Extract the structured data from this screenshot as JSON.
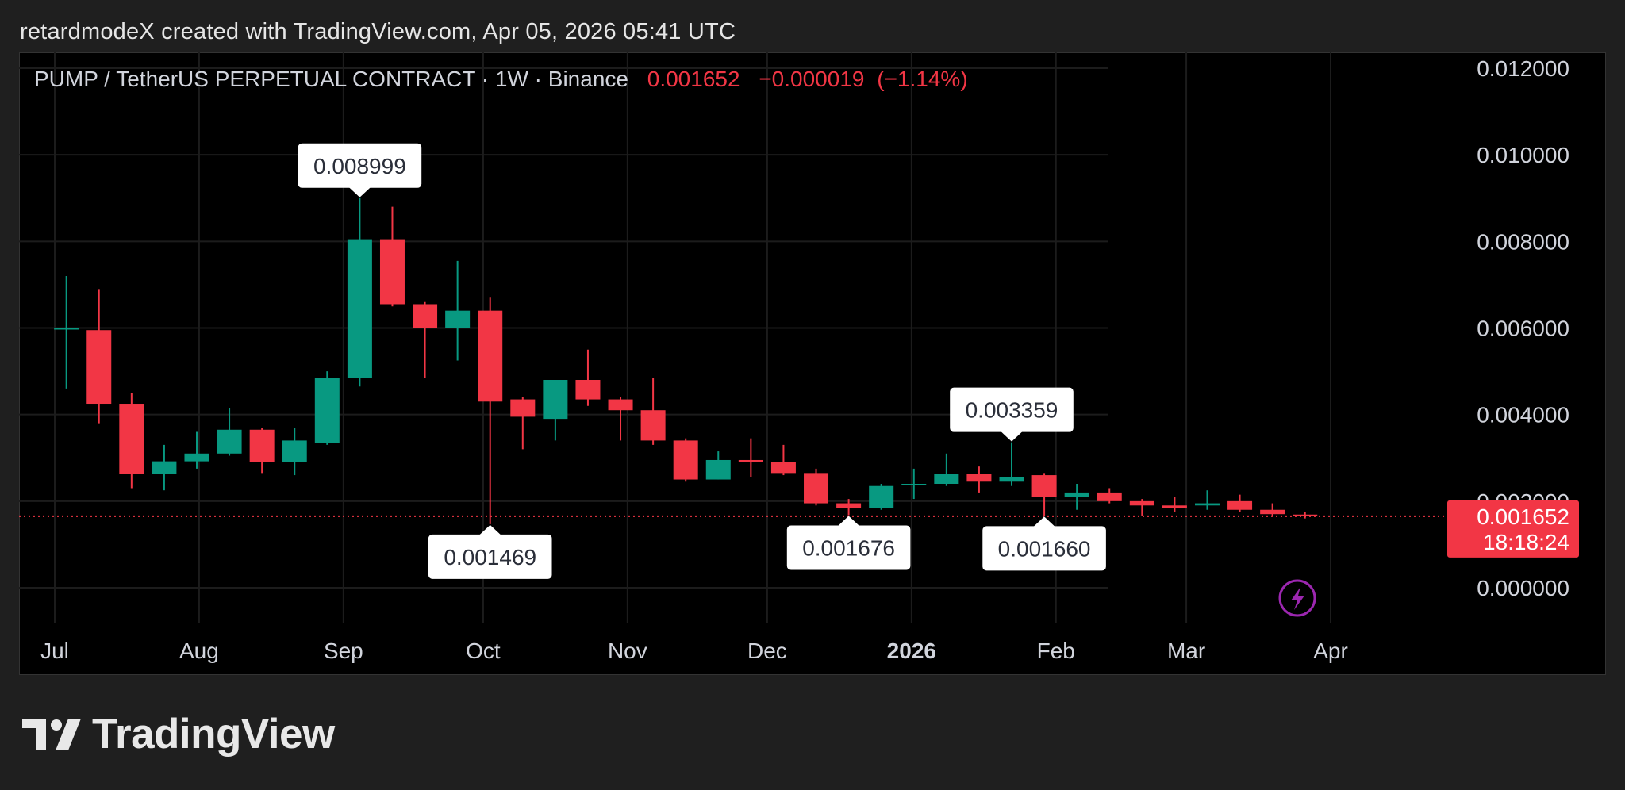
{
  "header": {
    "attribution": "retardmodeX created with TradingView.com, Apr 05, 2026 05:41 UTC"
  },
  "branding": {
    "logo_text": "TradingView",
    "logo_icon": "tradingview-logo-icon"
  },
  "colors": {
    "up": "#089981",
    "down": "#f23645",
    "grid": "#1c1c1c",
    "axis_text": "#d1d4dc",
    "background": "#000000",
    "frame": "#1f1f1f",
    "flash_icon": "#9c27b0"
  },
  "chart_data": {
    "type": "candlestick",
    "symbol": "PUMP / TetherUS PERPETUAL CONTRACT",
    "interval": "1W",
    "exchange": "Binance",
    "last_price": "0.001652",
    "change": "−0.000019",
    "change_pct": "(−1.14%)",
    "countdown": "18:18:24",
    "y_ticks": [
      "0.012000",
      "0.010000",
      "0.008000",
      "0.006000",
      "0.004000",
      "0.002000",
      "0.000000"
    ],
    "ylim": [
      0,
      0.012
    ],
    "x_labels": [
      {
        "label": "Jul",
        "date": "2025-07-01",
        "bold": false
      },
      {
        "label": "Aug",
        "date": "2025-08-01",
        "bold": false
      },
      {
        "label": "Sep",
        "date": "2025-09-01",
        "bold": false
      },
      {
        "label": "Oct",
        "date": "2025-10-01",
        "bold": false
      },
      {
        "label": "Nov",
        "date": "2025-11-01",
        "bold": false
      },
      {
        "label": "Dec",
        "date": "2025-12-01",
        "bold": false
      },
      {
        "label": "2026",
        "date": "2026-01-01",
        "bold": true
      },
      {
        "label": "Feb",
        "date": "2026-02-01",
        "bold": false
      },
      {
        "label": "Mar",
        "date": "2026-03-01",
        "bold": false
      },
      {
        "label": "Apr",
        "date": "2026-04-01",
        "bold": false
      }
    ],
    "candles": [
      {
        "date": "2025-06-30",
        "o": 0.006,
        "h": 0.0072,
        "l": 0.0046,
        "c": 0.006
      },
      {
        "date": "2025-07-07",
        "o": 0.00595,
        "h": 0.0069,
        "l": 0.0038,
        "c": 0.00425
      },
      {
        "date": "2025-07-14",
        "o": 0.00425,
        "h": 0.0045,
        "l": 0.0023,
        "c": 0.00262
      },
      {
        "date": "2025-07-21",
        "o": 0.00262,
        "h": 0.0033,
        "l": 0.00225,
        "c": 0.00292
      },
      {
        "date": "2025-07-28",
        "o": 0.00292,
        "h": 0.0036,
        "l": 0.00275,
        "c": 0.0031
      },
      {
        "date": "2025-08-04",
        "o": 0.0031,
        "h": 0.00415,
        "l": 0.00305,
        "c": 0.00365
      },
      {
        "date": "2025-08-11",
        "o": 0.00365,
        "h": 0.0037,
        "l": 0.00265,
        "c": 0.0029
      },
      {
        "date": "2025-08-18",
        "o": 0.0029,
        "h": 0.0037,
        "l": 0.0026,
        "c": 0.0034
      },
      {
        "date": "2025-08-25",
        "o": 0.00335,
        "h": 0.005,
        "l": 0.0033,
        "c": 0.00485
      },
      {
        "date": "2025-09-01",
        "o": 0.00485,
        "h": 0.008999,
        "l": 0.00465,
        "c": 0.00805
      },
      {
        "date": "2025-09-08",
        "o": 0.00805,
        "h": 0.0088,
        "l": 0.0065,
        "c": 0.00655
      },
      {
        "date": "2025-09-15",
        "o": 0.00655,
        "h": 0.0066,
        "l": 0.00485,
        "c": 0.006
      },
      {
        "date": "2025-09-22",
        "o": 0.006,
        "h": 0.00755,
        "l": 0.00525,
        "c": 0.0064
      },
      {
        "date": "2025-09-29",
        "o": 0.0064,
        "h": 0.0067,
        "l": 0.001469,
        "c": 0.0043
      },
      {
        "date": "2025-10-06",
        "o": 0.00435,
        "h": 0.0044,
        "l": 0.0032,
        "c": 0.00395
      },
      {
        "date": "2025-10-13",
        "o": 0.0039,
        "h": 0.0048,
        "l": 0.0034,
        "c": 0.0048
      },
      {
        "date": "2025-10-20",
        "o": 0.0048,
        "h": 0.0055,
        "l": 0.0042,
        "c": 0.00435
      },
      {
        "date": "2025-10-27",
        "o": 0.00435,
        "h": 0.0044,
        "l": 0.0034,
        "c": 0.0041
      },
      {
        "date": "2025-11-03",
        "o": 0.0041,
        "h": 0.00485,
        "l": 0.0033,
        "c": 0.0034
      },
      {
        "date": "2025-11-10",
        "o": 0.0034,
        "h": 0.00345,
        "l": 0.00245,
        "c": 0.0025
      },
      {
        "date": "2025-11-17",
        "o": 0.0025,
        "h": 0.00315,
        "l": 0.0025,
        "c": 0.00295
      },
      {
        "date": "2025-11-24",
        "o": 0.00295,
        "h": 0.00345,
        "l": 0.00255,
        "c": 0.0029
      },
      {
        "date": "2025-12-01",
        "o": 0.0029,
        "h": 0.0033,
        "l": 0.0026,
        "c": 0.00265
      },
      {
        "date": "2025-12-08",
        "o": 0.00265,
        "h": 0.00275,
        "l": 0.0019,
        "c": 0.00195
      },
      {
        "date": "2025-12-15",
        "o": 0.00195,
        "h": 0.00205,
        "l": 0.001676,
        "c": 0.00185
      },
      {
        "date": "2025-12-22",
        "o": 0.00185,
        "h": 0.0024,
        "l": 0.0018,
        "c": 0.00235
      },
      {
        "date": "2025-12-29",
        "o": 0.0024,
        "h": 0.00275,
        "l": 0.00205,
        "c": 0.0024
      },
      {
        "date": "2026-01-05",
        "o": 0.0024,
        "h": 0.0031,
        "l": 0.00235,
        "c": 0.00262
      },
      {
        "date": "2026-01-12",
        "o": 0.00262,
        "h": 0.0028,
        "l": 0.0022,
        "c": 0.00245
      },
      {
        "date": "2026-01-19",
        "o": 0.00245,
        "h": 0.003359,
        "l": 0.00235,
        "c": 0.00255
      },
      {
        "date": "2026-01-26",
        "o": 0.0026,
        "h": 0.00265,
        "l": 0.00166,
        "c": 0.0021
      },
      {
        "date": "2026-02-02",
        "o": 0.0021,
        "h": 0.0024,
        "l": 0.0018,
        "c": 0.0022
      },
      {
        "date": "2026-02-09",
        "o": 0.0022,
        "h": 0.0023,
        "l": 0.00195,
        "c": 0.002
      },
      {
        "date": "2026-02-16",
        "o": 0.002,
        "h": 0.00205,
        "l": 0.00165,
        "c": 0.0019
      },
      {
        "date": "2026-02-23",
        "o": 0.0019,
        "h": 0.0021,
        "l": 0.00175,
        "c": 0.00185
      },
      {
        "date": "2026-03-02",
        "o": 0.0019,
        "h": 0.00225,
        "l": 0.0018,
        "c": 0.00195
      },
      {
        "date": "2026-03-09",
        "o": 0.002,
        "h": 0.00215,
        "l": 0.00175,
        "c": 0.0018
      },
      {
        "date": "2026-03-16",
        "o": 0.0018,
        "h": 0.00195,
        "l": 0.00165,
        "c": 0.0017
      },
      {
        "date": "2026-03-23",
        "o": 0.00169,
        "h": 0.00175,
        "l": 0.0016,
        "c": 0.001652
      }
    ],
    "annotations": [
      {
        "text": "0.008999",
        "date": "2025-09-01",
        "price": 0.008999,
        "position": "above"
      },
      {
        "text": "0.001469",
        "date": "2025-09-29",
        "price": 0.001469,
        "position": "below"
      },
      {
        "text": "0.001676",
        "date": "2025-12-15",
        "price": 0.001676,
        "position": "below"
      },
      {
        "text": "0.003359",
        "date": "2026-01-19",
        "price": 0.003359,
        "position": "above"
      },
      {
        "text": "0.001660",
        "date": "2026-01-26",
        "price": 0.00166,
        "position": "below"
      }
    ]
  }
}
